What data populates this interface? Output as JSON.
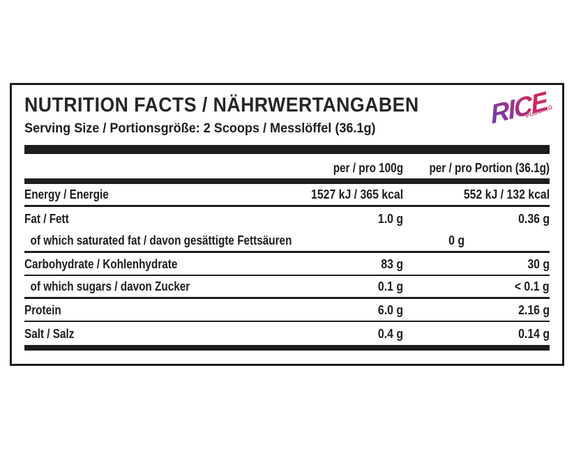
{
  "header": {
    "title": "NUTRITION FACTS / NÄHRWERTANGABEN",
    "serving": "Serving Size / Portionsgröße: 2 Scoops / Messlöffel (36.1g)"
  },
  "logo": {
    "brand": "RICE",
    "sub": "PUDDING",
    "gradient_from": "#6b3fa5",
    "gradient_to": "#d62a4e"
  },
  "table": {
    "columns": [
      "per / pro 100g",
      "per / pro Portion (36.1g)"
    ],
    "rows": [
      {
        "label": "Energy / Energie",
        "per_100g": "1527 kJ / 365 kcal",
        "per_portion": "552 kJ / 132 kcal",
        "indent": false,
        "divider": "thick"
      },
      {
        "label": "Fat / Fett",
        "per_100g": "1.0 g",
        "per_portion": "0.36 g",
        "indent": false,
        "divider": "none"
      },
      {
        "label": "of which saturated fat / davon gesättigte Fettsäuren",
        "per_100g": "0 g",
        "per_portion": "0 g",
        "indent": true,
        "divider": "thick"
      },
      {
        "label": "Carbohydrate / Kohlenhydrate",
        "per_100g": "83 g",
        "per_portion": "30 g",
        "indent": false,
        "divider": "thin"
      },
      {
        "label": "of which sugars / davon Zucker",
        "per_100g": "0.1 g",
        "per_portion": "< 0.1 g",
        "indent": true,
        "divider": "thick"
      },
      {
        "label": "Protein",
        "per_100g": "6.0 g",
        "per_portion": "2.16 g",
        "indent": false,
        "divider": "thin"
      },
      {
        "label": "Salt / Salz",
        "per_100g": "0.4 g",
        "per_portion": "0.14 g",
        "indent": false,
        "divider": "none"
      }
    ]
  },
  "colors": {
    "ink": "#1d1d1b"
  }
}
